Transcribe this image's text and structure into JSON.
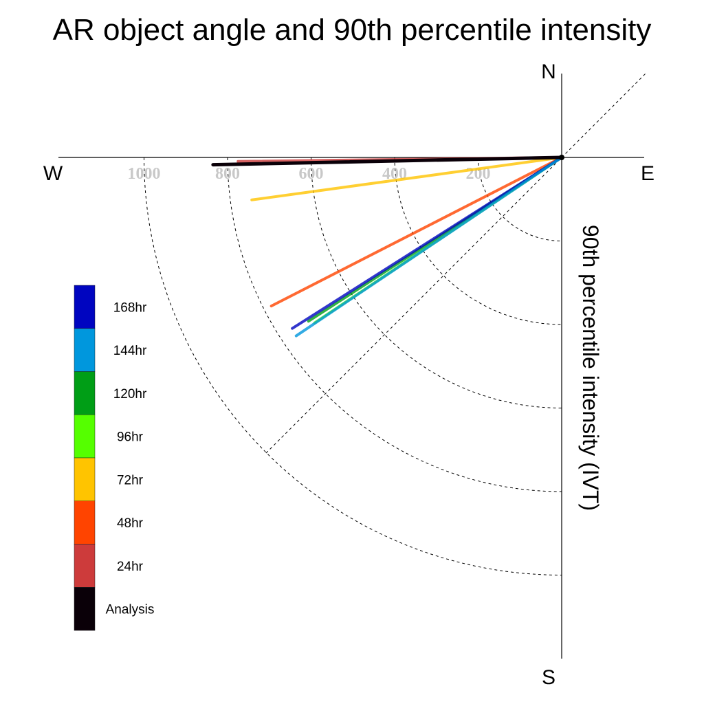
{
  "chart_data": {
    "type": "polar-line",
    "title": "AR object angle and 90th percentile intensity",
    "ylabel": "90th percentile intensity (IVT)",
    "compass": {
      "north": "N",
      "south": "S",
      "east": "E",
      "west": "W"
    },
    "r_ticks": [
      200,
      400,
      600,
      800,
      1000
    ],
    "r_tick_labels": [
      "200",
      "400",
      "600",
      "800",
      "1000"
    ],
    "rings": [
      200,
      400,
      600,
      800,
      1000
    ],
    "grid": true,
    "legend_position": "left",
    "series": [
      {
        "name": "Analysis",
        "color": "#0a0008",
        "angle_deg": 181.2,
        "intensity": 835
      },
      {
        "name": "24hr",
        "color": "#cd3b3b",
        "angle_deg": 180.7,
        "intensity": 775
      },
      {
        "name": "48hr",
        "color": "#ff4400",
        "angle_deg": 207.1,
        "intensity": 781
      },
      {
        "name": "72hr",
        "color": "#ffc400",
        "angle_deg": 187.8,
        "intensity": 749
      },
      {
        "name": "96hr",
        "color": "#55ff00",
        "angle_deg": 213.8,
        "intensity": 712
      },
      {
        "name": "120hr",
        "color": "#009e16",
        "angle_deg": 212.9,
        "intensity": 722
      },
      {
        "name": "144hr",
        "color": "#0097dd",
        "angle_deg": 213.9,
        "intensity": 766
      },
      {
        "name": "168hr",
        "color": "#0005c0",
        "angle_deg": 212.4,
        "intensity": 764
      }
    ]
  }
}
